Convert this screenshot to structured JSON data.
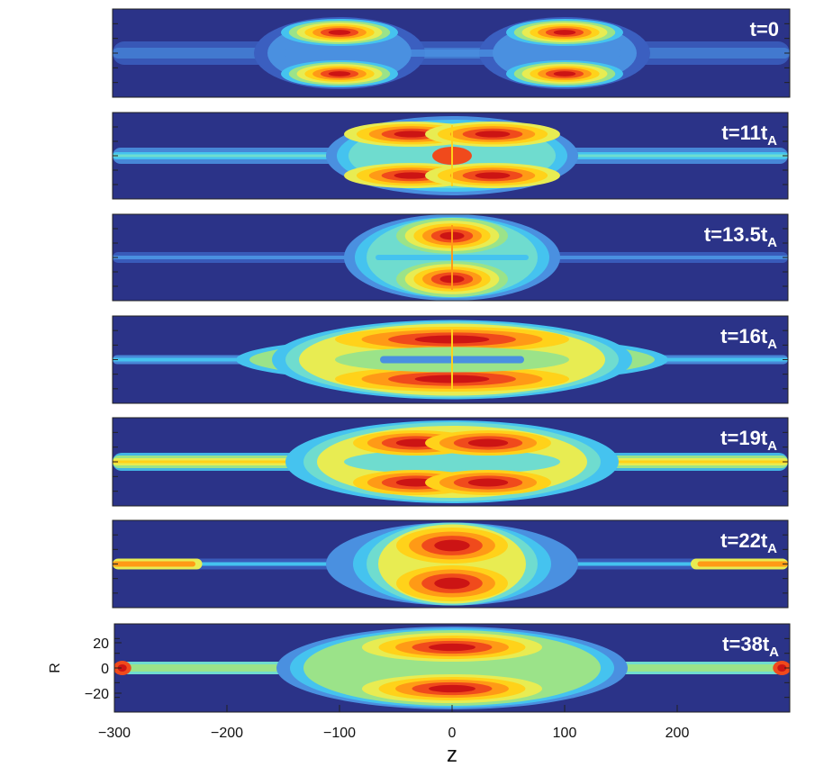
{
  "chart_data": {
    "type": "heatmap",
    "xlabel": "z",
    "ylabel": "R",
    "xlim": [
      -300,
      300
    ],
    "ylim": [
      -35,
      35
    ],
    "xticks": [
      -300,
      -200,
      -100,
      0,
      100,
      200
    ],
    "xtick_labels": [
      "−300",
      "−200",
      "−100",
      "0",
      "100",
      "200"
    ],
    "yticks": [
      20,
      0,
      -20
    ],
    "ytick_labels": [
      "20",
      "0",
      "−20"
    ],
    "colormap": [
      "#2b3388",
      "#3b5fc0",
      "#4a90e0",
      "#45c3ef",
      "#6fdccf",
      "#9be389",
      "#e8ec52",
      "#ffd21a",
      "#ff9a16",
      "#f04a1c",
      "#cc1414"
    ],
    "panels": [
      {
        "label_main": "t=0",
        "label_sub": ""
      },
      {
        "label_main": "t=11t",
        "label_sub": "A"
      },
      {
        "label_main": "t=13.5t",
        "label_sub": "A"
      },
      {
        "label_main": "t=16t",
        "label_sub": "A"
      },
      {
        "label_main": "t=19t",
        "label_sub": "A"
      },
      {
        "label_main": "t=22t",
        "label_sub": "A"
      },
      {
        "label_main": "t=38t",
        "label_sub": "A"
      }
    ]
  }
}
